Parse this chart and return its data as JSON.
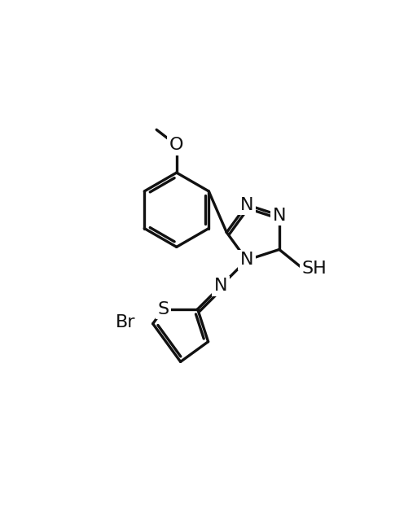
{
  "background_color": "#ffffff",
  "line_color": "#111111",
  "line_width": 2.4,
  "font_size": 16,
  "figsize": [
    5.12,
    6.4
  ],
  "dpi": 100,
  "xlim": [
    0.0,
    10.0
  ],
  "ylim": [
    1.5,
    13.0
  ]
}
